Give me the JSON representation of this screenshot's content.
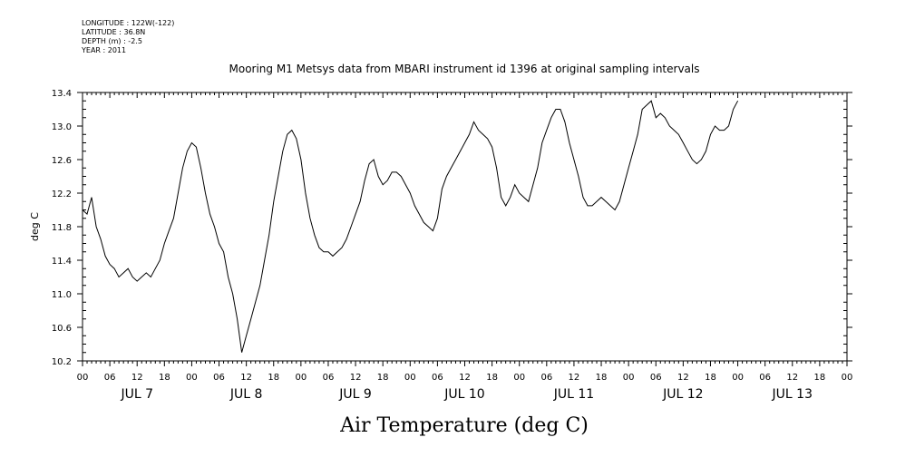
{
  "metadata": {
    "longitude": "LONGITUDE : 122W(-122)",
    "latitude": "LATITUDE : 36.8N",
    "depth": "DEPTH (m) : -2.5",
    "year": "YEAR : 2011"
  },
  "chart_data": {
    "type": "line",
    "title": "Mooring M1 Metsys data from MBARI instrument id 1396 at original sampling intervals",
    "xlabel": "Air Temperature (deg C)",
    "ylabel": "deg C",
    "ylim": [
      10.2,
      13.4
    ],
    "yticks": [
      "10.2",
      "10.6",
      "11.0",
      "11.4",
      "11.8",
      "12.2",
      "12.6",
      "13.0",
      "13.4"
    ],
    "xlim_hours": [
      0,
      168
    ],
    "hour_ticks": [
      "00",
      "06",
      "12",
      "18",
      "00",
      "06",
      "12",
      "18",
      "00",
      "06",
      "12",
      "18",
      "00",
      "06",
      "12",
      "18",
      "00",
      "06",
      "12",
      "18",
      "00",
      "06",
      "12",
      "18",
      "00",
      "06",
      "12",
      "18",
      "00"
    ],
    "day_labels": [
      "JUL 7",
      "JUL 8",
      "JUL 9",
      "JUL 10",
      "JUL 11",
      "JUL 12",
      "JUL 13"
    ],
    "grid": false,
    "series": [
      {
        "color": "#000000",
        "points": [
          [
            0,
            12.0
          ],
          [
            1,
            11.95
          ],
          [
            2,
            12.15
          ],
          [
            3,
            11.8
          ],
          [
            4,
            11.65
          ],
          [
            5,
            11.45
          ],
          [
            6,
            11.35
          ],
          [
            7,
            11.3
          ],
          [
            8,
            11.2
          ],
          [
            9,
            11.25
          ],
          [
            10,
            11.3
          ],
          [
            11,
            11.2
          ],
          [
            12,
            11.15
          ],
          [
            13,
            11.2
          ],
          [
            14,
            11.25
          ],
          [
            15,
            11.2
          ],
          [
            16,
            11.3
          ],
          [
            17,
            11.4
          ],
          [
            18,
            11.6
          ],
          [
            19,
            11.75
          ],
          [
            20,
            11.9
          ],
          [
            21,
            12.2
          ],
          [
            22,
            12.5
          ],
          [
            23,
            12.7
          ],
          [
            24,
            12.8
          ],
          [
            25,
            12.75
          ],
          [
            26,
            12.5
          ],
          [
            27,
            12.2
          ],
          [
            28,
            11.95
          ],
          [
            29,
            11.8
          ],
          [
            30,
            11.6
          ],
          [
            31,
            11.5
          ],
          [
            32,
            11.2
          ],
          [
            33,
            11.0
          ],
          [
            34,
            10.7
          ],
          [
            35,
            10.3
          ],
          [
            36,
            10.5
          ],
          [
            37,
            10.7
          ],
          [
            38,
            10.9
          ],
          [
            39,
            11.1
          ],
          [
            40,
            11.4
          ],
          [
            41,
            11.7
          ],
          [
            42,
            12.1
          ],
          [
            43,
            12.4
          ],
          [
            44,
            12.7
          ],
          [
            45,
            12.9
          ],
          [
            46,
            12.95
          ],
          [
            47,
            12.85
          ],
          [
            48,
            12.6
          ],
          [
            49,
            12.2
          ],
          [
            50,
            11.9
          ],
          [
            51,
            11.7
          ],
          [
            52,
            11.55
          ],
          [
            53,
            11.5
          ],
          [
            54,
            11.5
          ],
          [
            55,
            11.45
          ],
          [
            56,
            11.5
          ],
          [
            57,
            11.55
          ],
          [
            58,
            11.65
          ],
          [
            59,
            11.8
          ],
          [
            60,
            11.95
          ],
          [
            61,
            12.1
          ],
          [
            62,
            12.35
          ],
          [
            63,
            12.55
          ],
          [
            64,
            12.6
          ],
          [
            65,
            12.4
          ],
          [
            66,
            12.3
          ],
          [
            67,
            12.35
          ],
          [
            68,
            12.45
          ],
          [
            69,
            12.45
          ],
          [
            70,
            12.4
          ],
          [
            71,
            12.3
          ],
          [
            72,
            12.2
          ],
          [
            73,
            12.05
          ],
          [
            74,
            11.95
          ],
          [
            75,
            11.85
          ],
          [
            76,
            11.8
          ],
          [
            77,
            11.75
          ],
          [
            78,
            11.9
          ],
          [
            79,
            12.25
          ],
          [
            80,
            12.4
          ],
          [
            81,
            12.5
          ],
          [
            82,
            12.6
          ],
          [
            83,
            12.7
          ],
          [
            84,
            12.8
          ],
          [
            85,
            12.9
          ],
          [
            86,
            13.05
          ],
          [
            87,
            12.95
          ],
          [
            88,
            12.9
          ],
          [
            89,
            12.85
          ],
          [
            90,
            12.75
          ],
          [
            91,
            12.5
          ],
          [
            92,
            12.15
          ],
          [
            93,
            12.05
          ],
          [
            94,
            12.15
          ],
          [
            95,
            12.3
          ],
          [
            96,
            12.2
          ],
          [
            97,
            12.15
          ],
          [
            98,
            12.1
          ],
          [
            99,
            12.3
          ],
          [
            100,
            12.5
          ],
          [
            101,
            12.8
          ],
          [
            102,
            12.95
          ],
          [
            103,
            13.1
          ],
          [
            104,
            13.2
          ],
          [
            105,
            13.2
          ],
          [
            106,
            13.05
          ],
          [
            107,
            12.8
          ],
          [
            108,
            12.6
          ],
          [
            109,
            12.4
          ],
          [
            110,
            12.15
          ],
          [
            111,
            12.05
          ],
          [
            112,
            12.05
          ],
          [
            113,
            12.1
          ],
          [
            114,
            12.15
          ],
          [
            115,
            12.1
          ],
          [
            116,
            12.05
          ],
          [
            117,
            12.0
          ],
          [
            118,
            12.1
          ],
          [
            119,
            12.3
          ],
          [
            120,
            12.5
          ],
          [
            121,
            12.7
          ],
          [
            122,
            12.9
          ],
          [
            123,
            13.2
          ],
          [
            124,
            13.25
          ],
          [
            125,
            13.3
          ],
          [
            126,
            13.1
          ],
          [
            127,
            13.15
          ],
          [
            128,
            13.1
          ],
          [
            129,
            13.0
          ],
          [
            130,
            12.95
          ],
          [
            131,
            12.9
          ],
          [
            132,
            12.8
          ],
          [
            133,
            12.7
          ],
          [
            134,
            12.6
          ],
          [
            135,
            12.55
          ],
          [
            136,
            12.6
          ],
          [
            137,
            12.7
          ],
          [
            138,
            12.9
          ],
          [
            139,
            13.0
          ],
          [
            140,
            12.95
          ],
          [
            141,
            12.95
          ],
          [
            142,
            13.0
          ],
          [
            143,
            13.2
          ],
          [
            144,
            13.3
          ]
        ]
      }
    ]
  }
}
